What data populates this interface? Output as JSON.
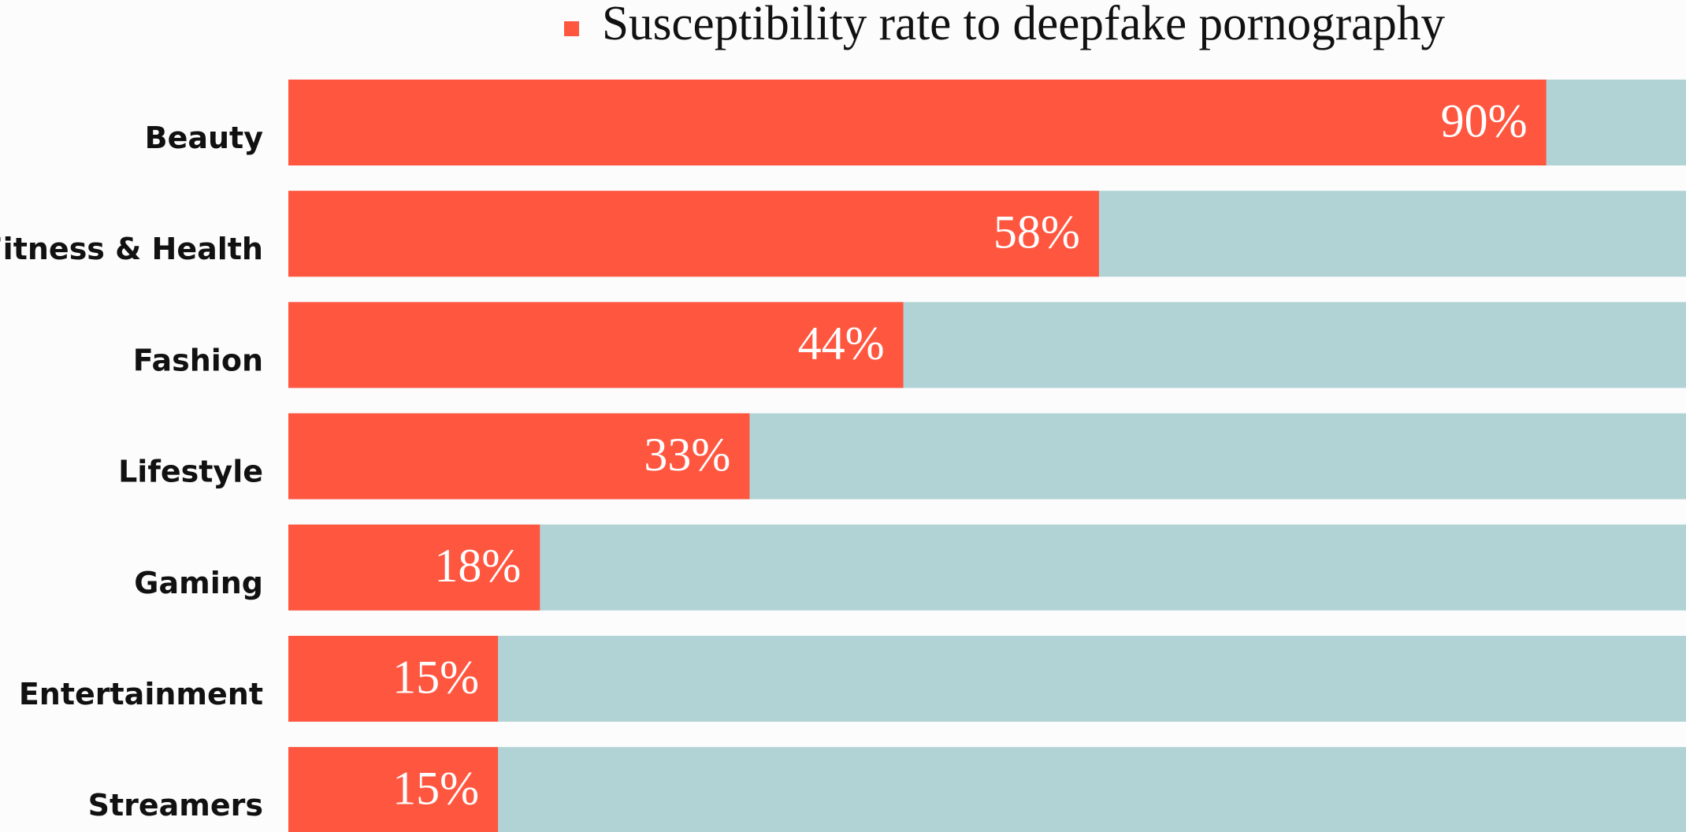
{
  "chart_data": {
    "type": "hbar",
    "series": [
      {
        "name": "Susceptibility rate to deepfake pornography",
        "color": "#ff5640",
        "values": [
          90,
          58,
          44,
          33,
          18,
          15,
          15
        ],
        "value_labels": [
          "90%",
          "58%",
          "44%",
          "33%",
          "18%",
          "15%",
          "15%"
        ]
      }
    ],
    "categories": [
      "Beauty",
      "Fitness & Health",
      "Fashion",
      "Lifestyle",
      "Gaming",
      "Entertainment",
      "Streamers"
    ],
    "xlim": [
      0,
      100
    ],
    "track_color": "#b1d3d5",
    "legend": "top"
  }
}
